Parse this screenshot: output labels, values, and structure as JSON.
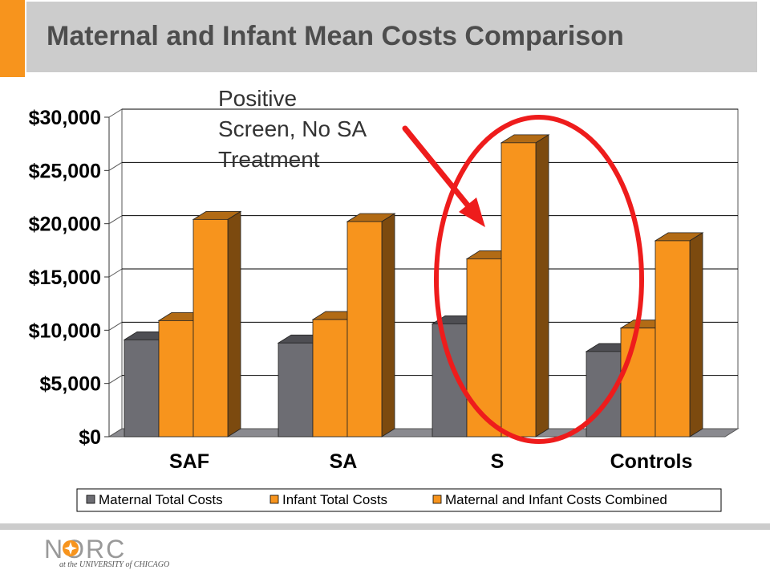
{
  "slide": {
    "title": "Maternal and Infant Mean Costs Comparison",
    "annotation_lines": [
      "Positive",
      "Screen, No SA",
      "Treatment"
    ]
  },
  "logo": {
    "word": "NORC",
    "tagline": "at the UNIVERSITY of CHICAGO"
  },
  "colors": {
    "accent": "#f7941d",
    "band": "#cccccc",
    "maternal": "#6d6d73",
    "infant": "#f7941d",
    "combined": "#f7941d",
    "highlight": "#ee1c1c"
  },
  "chart_data": {
    "type": "bar",
    "style": "3d-clustered",
    "categories": [
      "SAF",
      "SA",
      "S",
      "Controls"
    ],
    "series": [
      {
        "name": "Maternal Total Costs",
        "values": [
          9100,
          8800,
          10600,
          8000
        ]
      },
      {
        "name": "Infant Total Costs",
        "values": [
          10900,
          11000,
          16700,
          10200
        ]
      },
      {
        "name": "Maternal and Infant Costs Combined",
        "values": [
          20400,
          20200,
          27600,
          18400
        ]
      }
    ],
    "ylim": [
      0,
      30000
    ],
    "yticks": [
      "$0",
      "$5,000",
      "$10,000",
      "$15,000",
      "$20,000",
      "$25,000",
      "$30,000"
    ],
    "grid": true,
    "legend": "bottom",
    "highlight_category": "S"
  }
}
